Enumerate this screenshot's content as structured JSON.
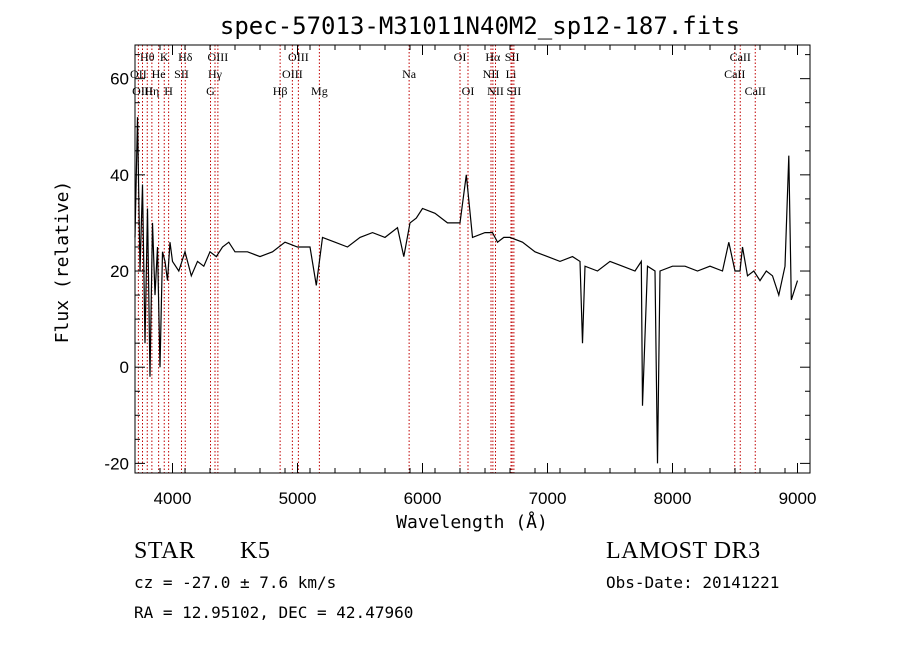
{
  "chart_data": {
    "type": "line",
    "title": "spec-57013-M31011N40M2_sp12-187.fits",
    "xlabel": "Wavelength (Å)",
    "ylabel": "Flux (relative)",
    "xlim": [
      3700,
      9100
    ],
    "ylim": [
      -22,
      67
    ],
    "xticks": [
      4000,
      5000,
      6000,
      7000,
      8000,
      9000
    ],
    "yticks": [
      -20,
      0,
      20,
      40,
      60
    ],
    "tick_labels_x": [
      "4000",
      "5000",
      "6000",
      "7000",
      "8000",
      "9000"
    ],
    "tick_labels_y": [
      "-20",
      "0",
      "20",
      "40",
      "60"
    ],
    "series": [
      {
        "name": "flux",
        "x": [
          3700,
          3720,
          3740,
          3760,
          3780,
          3800,
          3820,
          3840,
          3860,
          3880,
          3900,
          3920,
          3940,
          3960,
          3980,
          4000,
          4050,
          4100,
          4150,
          4200,
          4250,
          4300,
          4350,
          4400,
          4450,
          4500,
          4600,
          4700,
          4800,
          4900,
          5000,
          5100,
          5150,
          5200,
          5300,
          5400,
          5500,
          5600,
          5700,
          5800,
          5850,
          5900,
          5950,
          6000,
          6100,
          6200,
          6300,
          6350,
          6400,
          6500,
          6560,
          6600,
          6650,
          6700,
          6800,
          6900,
          7000,
          7100,
          7200,
          7260,
          7280,
          7300,
          7400,
          7500,
          7600,
          7700,
          7750,
          7760,
          7800,
          7860,
          7880,
          7900,
          8000,
          8100,
          8200,
          8300,
          8400,
          8450,
          8500,
          8540,
          8560,
          8600,
          8650,
          8700,
          8750,
          8800,
          8850,
          8900,
          8930,
          8950,
          9000
        ],
        "values": [
          27,
          52,
          20,
          38,
          5,
          33,
          -2,
          30,
          15,
          25,
          0,
          24,
          22,
          18,
          26,
          22,
          20,
          24,
          19,
          22,
          21,
          24,
          23,
          25,
          26,
          24,
          24,
          23,
          24,
          26,
          25,
          25,
          17,
          27,
          26,
          25,
          27,
          28,
          27,
          29,
          23,
          30,
          31,
          33,
          32,
          30,
          30,
          40,
          27,
          28,
          28,
          26,
          27,
          27,
          26,
          24,
          23,
          22,
          23,
          22,
          5,
          21,
          20,
          22,
          21,
          20,
          22,
          -8,
          21,
          20,
          -20,
          20,
          21,
          21,
          20,
          21,
          20,
          26,
          20,
          20,
          25,
          19,
          20,
          18,
          20,
          19,
          15,
          21,
          44,
          14,
          18
        ]
      }
    ],
    "line_marks": [
      {
        "label": "Hθ",
        "x": 3798,
        "row": 1
      },
      {
        "label": "OII",
        "x": 3727,
        "row": 2
      },
      {
        "label": "OIII",
        "x": 3760,
        "row": 3
      },
      {
        "label": "Hη",
        "x": 3835,
        "row": 3
      },
      {
        "label": "K",
        "x": 3934,
        "row": 1
      },
      {
        "label": "He",
        "x": 3889,
        "row": 2
      },
      {
        "label": "H",
        "x": 3969,
        "row": 3
      },
      {
        "label": "Hδ",
        "x": 4102,
        "row": 1
      },
      {
        "label": "SII",
        "x": 4072,
        "row": 2
      },
      {
        "label": "OIII",
        "x": 4363,
        "row": 1
      },
      {
        "label": "Hγ",
        "x": 4340,
        "row": 2
      },
      {
        "label": "G",
        "x": 4304,
        "row": 3
      },
      {
        "label": "Hβ",
        "x": 4861,
        "row": 3
      },
      {
        "label": "OIII",
        "x": 5007,
        "row": 1
      },
      {
        "label": "OIII",
        "x": 4959,
        "row": 2
      },
      {
        "label": "Mg",
        "x": 5175,
        "row": 3
      },
      {
        "label": "Na",
        "x": 5893,
        "row": 2
      },
      {
        "label": "OI",
        "x": 6300,
        "row": 1
      },
      {
        "label": "OI",
        "x": 6364,
        "row": 3
      },
      {
        "label": "Hα",
        "x": 6563,
        "row": 1
      },
      {
        "label": "NII",
        "x": 6548,
        "row": 2
      },
      {
        "label": "NII",
        "x": 6584,
        "row": 3
      },
      {
        "label": "SII",
        "x": 6717,
        "row": 1
      },
      {
        "label": "Li",
        "x": 6708,
        "row": 2
      },
      {
        "label": "SII",
        "x": 6731,
        "row": 3
      },
      {
        "label": "CaII",
        "x": 8542,
        "row": 1
      },
      {
        "label": "CaII",
        "x": 8498,
        "row": 2
      },
      {
        "label": "CaII",
        "x": 8662,
        "row": 3
      }
    ]
  },
  "info": {
    "object_class": "STAR",
    "subclass": "K5",
    "survey": "LAMOST DR3",
    "velocity": "cz = -27.0 ± 7.6 km/s",
    "obs_date": "Obs-Date: 20141221",
    "coords": "RA =  12.95102, DEC =  42.47960"
  }
}
